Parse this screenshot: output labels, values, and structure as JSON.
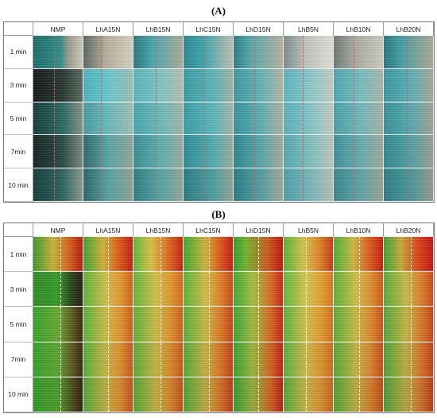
{
  "panel_a": {
    "label": "(A)",
    "columns": [
      "NMP",
      "LhA15N",
      "LhB15N",
      "LhC15N",
      "LhD15N",
      "LhB5N",
      "LhB10N",
      "LhB20N"
    ],
    "rows": [
      "1 min",
      "3 min",
      "5 min",
      "7min",
      "10 min"
    ]
  },
  "panel_b": {
    "label": "(B)",
    "columns": [
      "NMP",
      "LhA15N",
      "LhB15N",
      "LhC15N",
      "LhD15N",
      "LhB5N",
      "LhB10N",
      "LhB20N"
    ],
    "rows": [
      "1 min",
      "3 min",
      "5 min",
      "7min",
      "10 min"
    ]
  }
}
